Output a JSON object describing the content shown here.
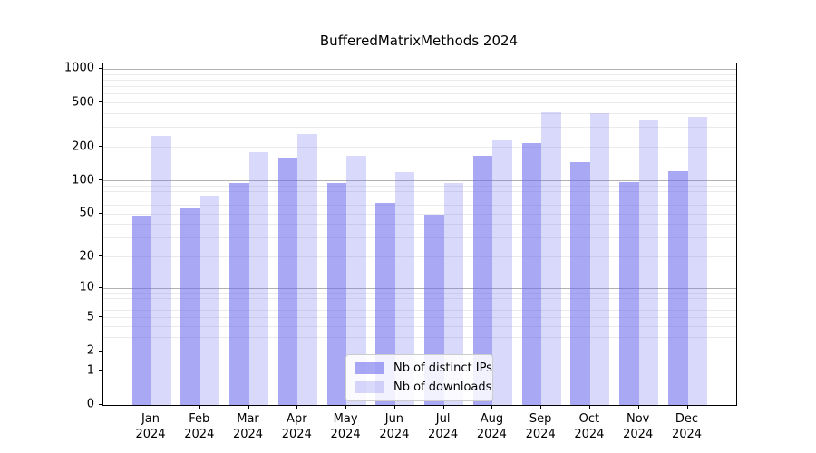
{
  "chart_data": {
    "type": "bar",
    "title": "BufferedMatrixMethods 2024",
    "categories": [
      "Jan",
      "Feb",
      "Mar",
      "Apr",
      "May",
      "Jun",
      "Jul",
      "Aug",
      "Sep",
      "Oct",
      "Nov",
      "Dec"
    ],
    "category_year": "2024",
    "series": [
      {
        "name": "Nb of distinct IPs",
        "color": "rgba(102,102,238,0.57)",
        "color_hex_on_white": "#a8a8f6",
        "values": [
          48,
          56,
          95,
          160,
          94,
          62,
          49,
          165,
          215,
          145,
          97,
          120
        ]
      },
      {
        "name": "Nb of downloads",
        "color": "rgba(102,102,238,0.25)",
        "color_hex_on_white": "#d9d9f9",
        "values": [
          250,
          72,
          180,
          260,
          167,
          118,
          95,
          230,
          410,
          398,
          350,
          373
        ]
      }
    ],
    "xlabel": "",
    "ylabel": "",
    "y_axis": {
      "scale": "log1p",
      "range": [
        0,
        1000
      ],
      "tick_values": [
        0,
        1,
        2,
        5,
        10,
        20,
        50,
        100,
        200,
        500,
        1000
      ],
      "major_gridline_values": [
        1,
        10,
        100,
        1000
      ],
      "major_gridline_color": "#b2b2b2",
      "minor_gridline_color": "#ebebeb"
    },
    "legend": {
      "position": "bottom-center",
      "entries": [
        "Nb of distinct IPs",
        "Nb of downloads"
      ]
    },
    "grid": true,
    "background_color": "#ffffff",
    "axis_color": "#000000"
  }
}
